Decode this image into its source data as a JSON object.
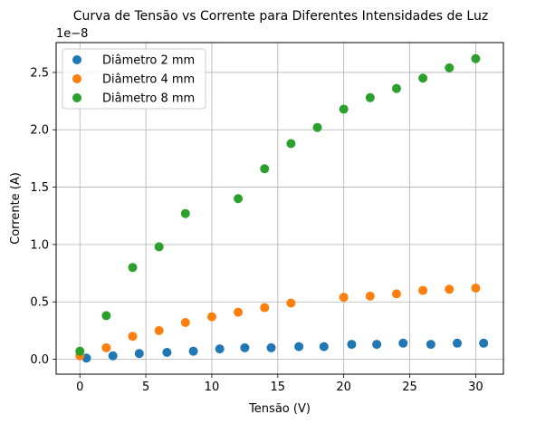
{
  "chart_data": {
    "type": "scatter",
    "title": "Curva de Tensão vs Corrente para Diferentes Intensidades de Luz",
    "xlabel": "Tensão (V)",
    "ylabel": "Corrente (A)",
    "y_offset_label": "1e−8",
    "y_scale": 1e-08,
    "xlim": [
      -1.8,
      32.1
    ],
    "ylim": [
      -0.13,
      2.76
    ],
    "x_ticks": [
      0,
      5,
      10,
      15,
      20,
      25,
      30
    ],
    "y_ticks": [
      0.0,
      0.5,
      1.0,
      1.5,
      2.0,
      2.5
    ],
    "x_tick_labels": [
      "0",
      "5",
      "10",
      "15",
      "20",
      "25",
      "30"
    ],
    "y_tick_labels": [
      "0.0",
      "0.5",
      "1.0",
      "1.5",
      "2.0",
      "2.5"
    ],
    "grid": true,
    "legend_position": "top-left",
    "series": [
      {
        "name": "Diâmetro 2 mm",
        "color": "#1f77b4",
        "x": [
          0.5,
          2.5,
          4.5,
          6.6,
          8.6,
          10.6,
          12.5,
          14.5,
          16.6,
          18.5,
          20.6,
          22.5,
          24.5,
          26.6,
          28.6,
          30.6
        ],
        "y": [
          0.01,
          0.03,
          0.05,
          0.06,
          0.07,
          0.09,
          0.1,
          0.1,
          0.11,
          0.11,
          0.13,
          0.13,
          0.14,
          0.13,
          0.14,
          0.14
        ]
      },
      {
        "name": "Diâmetro 4 mm",
        "color": "#ff7f0e",
        "x": [
          0,
          2,
          4,
          6,
          8,
          10,
          12,
          14,
          16,
          20,
          22,
          24,
          26,
          28,
          30
        ],
        "y": [
          0.03,
          0.1,
          0.2,
          0.25,
          0.32,
          0.37,
          0.41,
          0.45,
          0.49,
          0.54,
          0.55,
          0.57,
          0.6,
          0.61,
          0.62
        ]
      },
      {
        "name": "Diâmetro 8 mm",
        "color": "#2ca02c",
        "x": [
          0,
          2,
          4,
          6,
          8,
          12,
          14,
          16,
          18,
          20,
          22,
          24,
          26,
          28,
          30
        ],
        "y": [
          0.07,
          0.38,
          0.8,
          0.98,
          1.27,
          1.4,
          1.66,
          1.88,
          2.02,
          2.18,
          2.28,
          2.36,
          2.45,
          2.54,
          2.62
        ]
      }
    ]
  }
}
